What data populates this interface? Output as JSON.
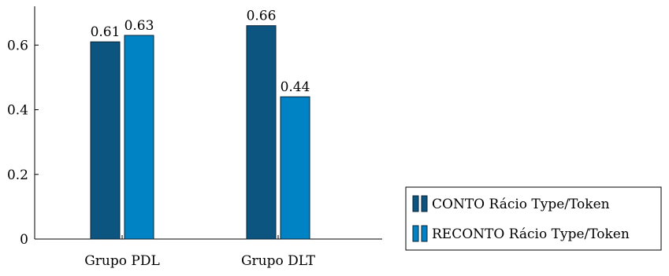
{
  "chart_data": {
    "type": "bar",
    "title": "",
    "xlabel": "",
    "ylabel": "",
    "categories": [
      "Grupo PDL",
      "Grupo DLT"
    ],
    "series": [
      {
        "name": "CONTO Rácio Type/Token",
        "values": [
          0.61,
          0.66
        ],
        "color": "#0b5580"
      },
      {
        "name": "RECONTO Rácio Type/Token",
        "values": [
          0.63,
          0.44
        ],
        "color": "#0083c4"
      }
    ],
    "value_labels": [
      [
        "0.61",
        "0.66"
      ],
      [
        "0.63",
        "0.44"
      ]
    ],
    "yticks": [
      0,
      0.2,
      0.4,
      0.6
    ],
    "ytick_labels": [
      "0",
      "0.2",
      "0.4",
      "0.6"
    ],
    "ylim": [
      0,
      0.72
    ],
    "grid": false,
    "legend_position": "bottom-right"
  }
}
